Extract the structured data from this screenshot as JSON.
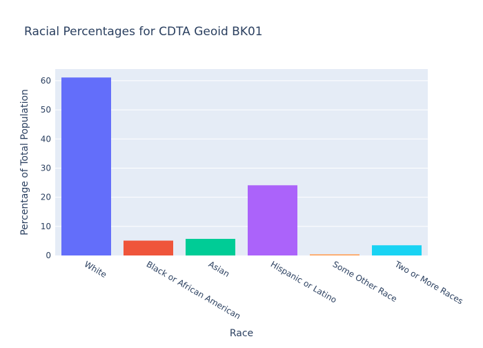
{
  "chart_data": {
    "type": "bar",
    "title": "Racial Percentages for CDTA Geoid BK01",
    "xlabel": "Race",
    "ylabel": "Percentage of Total Population",
    "categories": [
      "White",
      "Black or African American",
      "Asian",
      "Hispanic or Latino",
      "Some Other Race",
      "Two or More Races"
    ],
    "values": [
      61.1,
      5.1,
      5.7,
      24.1,
      0.4,
      3.5
    ],
    "colors": [
      "#636efa",
      "#ef553b",
      "#00cc96",
      "#ab63fa",
      "#ffa15a",
      "#19d3f3"
    ],
    "ylim": [
      0,
      64
    ],
    "yticks": [
      0,
      10,
      20,
      30,
      40,
      50,
      60
    ],
    "grid": true,
    "legend": "none",
    "plot_background": "#e5ecf6"
  }
}
